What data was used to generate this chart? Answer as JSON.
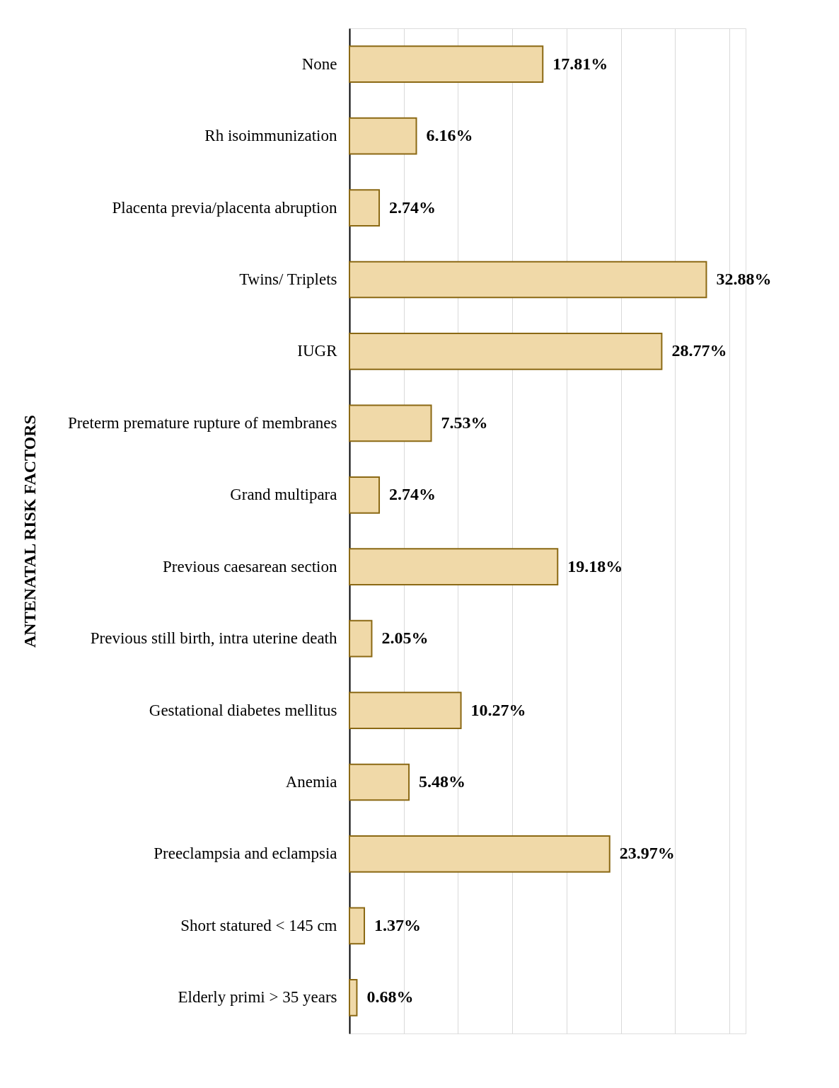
{
  "chart_data": {
    "type": "bar",
    "orientation": "horizontal",
    "ylabel": "ANTENATAL RISK FACTORS",
    "categories": [
      "None",
      "Rh isoimmunization",
      "Placenta previa/placenta abruption",
      "Twins/ Triplets",
      "IUGR",
      "Preterm premature rupture of membranes",
      "Grand multipara",
      "Previous caesarean section",
      "Previous still birth, intra uterine death",
      "Gestational diabetes mellitus",
      "Anemia",
      "Preeclampsia and eclampsia",
      "Short statured < 145 cm",
      "Elderly primi > 35 years"
    ],
    "values": [
      17.81,
      6.16,
      2.74,
      32.88,
      28.77,
      7.53,
      2.74,
      19.18,
      2.05,
      10.27,
      5.48,
      23.97,
      1.37,
      0.68
    ],
    "value_labels": [
      "17.81%",
      "6.16%",
      "2.74%",
      "32.88%",
      "28.77%",
      "7.53%",
      "2.74%",
      "19.18%",
      "2.05%",
      "10.27%",
      "5.48%",
      "23.97%",
      "1.37%",
      "0.68%"
    ],
    "color": "#f0d9a8",
    "xlim": [
      0,
      36.5
    ],
    "xticks": [
      {
        "value": 0,
        "label": null
      },
      {
        "value": 5,
        "label": null
      },
      {
        "value": 10,
        "label": null
      },
      {
        "value": 15,
        "label": null
      },
      {
        "value": 20,
        "label": null
      },
      {
        "value": 25,
        "label": null
      },
      {
        "value": 30,
        "label": null
      },
      {
        "value": 35,
        "label": null
      }
    ],
    "tick_labels": "y",
    "grid": "x"
  }
}
